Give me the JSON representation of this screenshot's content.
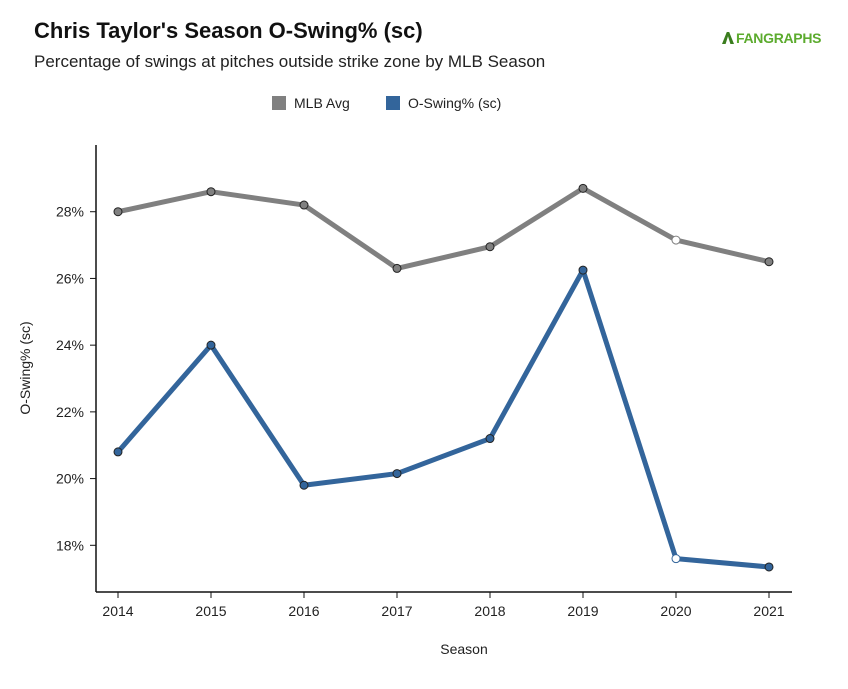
{
  "header": {
    "title": "Chris Taylor's Season O-Swing% (sc)",
    "subtitle": "Percentage of swings at pitches outside strike zone by MLB Season",
    "logo_text": "FANGRAPHS"
  },
  "chart_data": {
    "type": "line",
    "title": "Chris Taylor's Season O-Swing% (sc)",
    "subtitle": "Percentage of swings at pitches outside strike zone by MLB Season",
    "xlabel": "Season",
    "ylabel": "O-Swing% (sc)",
    "x": [
      2014,
      2015,
      2016,
      2017,
      2018,
      2019,
      2020,
      2021
    ],
    "x_tick_labels": [
      "2014",
      "2015",
      "2016",
      "2017",
      "2018",
      "2019",
      "2020",
      "2021"
    ],
    "ylim": [
      16.6,
      30
    ],
    "y_ticks": [
      18,
      20,
      22,
      24,
      26,
      28
    ],
    "y_tick_labels": [
      "18%",
      "20%",
      "22%",
      "24%",
      "26%",
      "28%"
    ],
    "grid": false,
    "legend_position": "top-center",
    "series": [
      {
        "name": "MLB Avg",
        "color": "#808080",
        "values": [
          28.0,
          28.6,
          28.2,
          26.3,
          26.95,
          28.7,
          27.15,
          26.5
        ],
        "hollow_points": [
          2020
        ]
      },
      {
        "name": "O-Swing% (sc)",
        "color": "#33659b",
        "values": [
          20.8,
          24.0,
          19.8,
          20.15,
          21.2,
          26.25,
          17.6,
          17.35
        ],
        "hollow_points": [
          2020
        ]
      }
    ]
  }
}
